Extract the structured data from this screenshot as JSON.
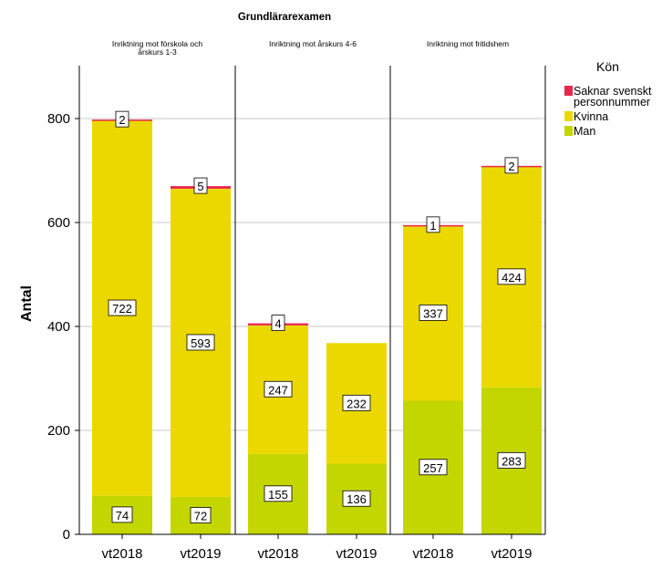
{
  "chart_data": {
    "type": "bar",
    "stacked": true,
    "title_partial": "Grundlärarexamen",
    "ylabel": "Antal",
    "ylim": [
      0,
      880
    ],
    "yticks": [
      0,
      200,
      400,
      600,
      800
    ],
    "grid": true,
    "legend_title": "Kön",
    "legend_position": "right",
    "series": [
      {
        "name": "Man",
        "color": "#c4d600"
      },
      {
        "name": "Kvinna",
        "color": "#ebd800"
      },
      {
        "name": "Saknar svenskt personnummer",
        "color": "#e8264c"
      }
    ],
    "panels": [
      {
        "title": "Inriktning mot förskola och årskurs 1-3",
        "title_lines": [
          "Inriktning mot förskola och",
          "årskurs 1-3"
        ],
        "bars": [
          {
            "x": "vt2018",
            "man": 74,
            "kvinna": 722,
            "saknar": 2,
            "labels": {
              "man": "74",
              "kvinna": "722",
              "saknar": "2"
            }
          },
          {
            "x": "vt2019",
            "man": 72,
            "kvinna": 593,
            "saknar": 5,
            "labels": {
              "man": "72",
              "kvinna": "593",
              "saknar": "5"
            }
          }
        ]
      },
      {
        "title": "Inriktning mot årskurs 4-6",
        "title_lines": [
          "Inriktning mot årskurs 4-6"
        ],
        "bars": [
          {
            "x": "vt2018",
            "man": 155,
            "kvinna": 247,
            "saknar": 4,
            "labels": {
              "man": "155",
              "kvinna": "247",
              "saknar": "4"
            }
          },
          {
            "x": "vt2019",
            "man": 136,
            "kvinna": 232,
            "saknar": 0,
            "labels": {
              "man": "136",
              "kvinna": "232",
              "saknar": ""
            }
          }
        ]
      },
      {
        "title": "Inriktning mot fritidshem",
        "title_lines": [
          "Inriktning mot fritidshem"
        ],
        "bars": [
          {
            "x": "vt2018",
            "man": 257,
            "kvinna": 337,
            "saknar": 1,
            "labels": {
              "man": "257",
              "kvinna": "337",
              "saknar": "1"
            }
          },
          {
            "x": "vt2019",
            "man": 283,
            "kvinna": 424,
            "saknar": 2,
            "labels": {
              "man": "283",
              "kvinna": "424",
              "saknar": "2"
            }
          }
        ]
      }
    ]
  }
}
